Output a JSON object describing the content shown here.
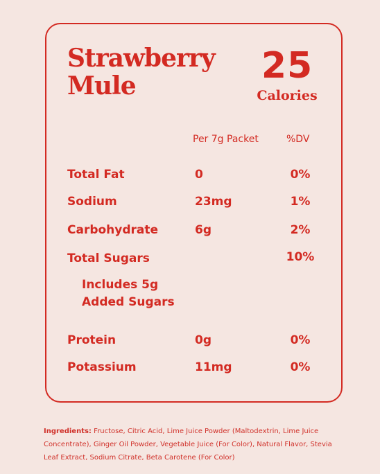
{
  "product": {
    "name_line1": "Strawberry",
    "name_line2": "Mule",
    "calories_value": "25",
    "calories_label": "Calories"
  },
  "columns": {
    "amount_header": "Per 7g Packet",
    "dv_header": "%DV"
  },
  "nutrients": [
    {
      "name": "Total Fat",
      "amount": "0",
      "dv": "0%"
    },
    {
      "name": "Sodium",
      "amount": "23mg",
      "dv": "1%"
    },
    {
      "name": "Carbohydrate",
      "amount": "6g",
      "dv": "2%"
    },
    {
      "name": "Total Sugars",
      "amount": "",
      "dv": "10%"
    },
    {
      "name": "Protein",
      "amount": "0g",
      "dv": "0%"
    },
    {
      "name": "Potassium",
      "amount": "11mg",
      "dv": "0%"
    }
  ],
  "added_sugars": {
    "line1": "Includes 5g",
    "line2": "Added Sugars"
  },
  "ingredients": {
    "label": "Ingredients:",
    "text": " Fructose, Citric Acid, Lime Juice Powder (Maltodextrin, Lime Juice Concentrate), Ginger Oil Powder, Vegetable Juice (For Color), Natural Flavor, Stevia Leaf Extract, Sodium Citrate, Beta Carotene (For Color)"
  },
  "colors": {
    "accent": "#d32a22",
    "background": "#f5e6e1"
  }
}
